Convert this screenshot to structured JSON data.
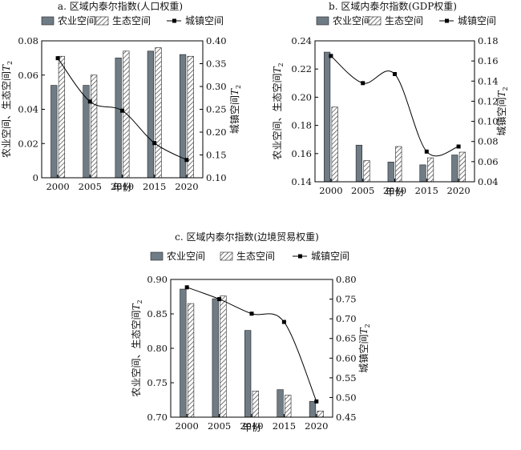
{
  "legend": {
    "agri": "农业空间",
    "eco": "生态空间",
    "urban": "城镇空间"
  },
  "colors": {
    "agri_fill": "#6f7c86",
    "eco_fill": "#ffffff",
    "hatch": "#333333",
    "line": "#000000"
  },
  "chart_data": [
    {
      "type": "bar",
      "title": "a. 区域内泰尔指数(人口权重)",
      "xlabel": "年份",
      "ylabel_left_prefix": "农业空间、生态空间",
      "ylabel_right_prefix": "城镇空间",
      "ylabel_symbol": "T",
      "ylabel_subscript": "2",
      "categories": [
        "2000",
        "2005",
        "2010",
        "2015",
        "2020"
      ],
      "ylim_left": [
        0,
        0.08
      ],
      "ylim_right": [
        0.1,
        0.4
      ],
      "yticks_left": [
        "0",
        "0.02",
        "0.04",
        "0.06",
        "0.08"
      ],
      "yticks_right": [
        "0.10",
        "0.15",
        "0.20",
        "0.25",
        "0.30",
        "0.35",
        "0.40"
      ],
      "series": [
        {
          "name": "农业空间",
          "type": "bar",
          "axis": "left",
          "values": [
            0.054,
            0.054,
            0.07,
            0.074,
            0.072
          ]
        },
        {
          "name": "生态空间",
          "type": "bar",
          "axis": "left",
          "values": [
            0.071,
            0.06,
            0.074,
            0.076,
            0.071
          ]
        },
        {
          "name": "城镇空间",
          "type": "line",
          "axis": "right",
          "values": [
            0.362,
            0.267,
            0.247,
            0.176,
            0.139
          ]
        }
      ]
    },
    {
      "type": "bar",
      "title": "b. 区域内泰尔指数(GDP权重)",
      "xlabel": "年份",
      "ylabel_left_prefix": "农业空间、生态空间",
      "ylabel_right_prefix": "城镇空间",
      "ylabel_symbol": "T",
      "ylabel_subscript": "2",
      "categories": [
        "2000",
        "2005",
        "2010",
        "2015",
        "2020"
      ],
      "ylim_left": [
        0.14,
        0.24
      ],
      "ylim_right": [
        0.04,
        0.18
      ],
      "yticks_left": [
        "0.14",
        "0.16",
        "0.18",
        "0.20",
        "0.22",
        "0.24"
      ],
      "yticks_right": [
        "0.04",
        "0.06",
        "0.08",
        "0.10",
        "0.12",
        "0.14",
        "0.16",
        "0.18"
      ],
      "series": [
        {
          "name": "农业空间",
          "type": "bar",
          "axis": "left",
          "values": [
            0.232,
            0.166,
            0.154,
            0.152,
            0.159
          ]
        },
        {
          "name": "生态空间",
          "type": "bar",
          "axis": "left",
          "values": [
            0.193,
            0.155,
            0.165,
            0.157,
            0.161
          ]
        },
        {
          "name": "城镇空间",
          "type": "line",
          "axis": "right",
          "values": [
            0.165,
            0.138,
            0.147,
            0.07,
            0.075
          ]
        }
      ]
    },
    {
      "type": "bar",
      "title": "c. 区域内泰尔指数(边境贸易权重)",
      "xlabel": "年份",
      "ylabel_left_prefix": "农业空间、生态空间",
      "ylabel_right_prefix": "城镇空间",
      "ylabel_symbol": "T",
      "ylabel_subscript": "2",
      "categories": [
        "2000",
        "2005",
        "2010",
        "2015",
        "2020"
      ],
      "ylim_left": [
        0.7,
        0.9
      ],
      "ylim_right": [
        0.45,
        0.8
      ],
      "yticks_left": [
        "0.70",
        "0.75",
        "0.80",
        "0.85",
        "0.90"
      ],
      "yticks_right": [
        "0.45",
        "0.50",
        "0.55",
        "0.60",
        "0.65",
        "0.70",
        "0.75",
        "0.80"
      ],
      "series": [
        {
          "name": "农业空间",
          "type": "bar",
          "axis": "left",
          "values": [
            0.886,
            0.872,
            0.826,
            0.74,
            0.723
          ]
        },
        {
          "name": "生态空间",
          "type": "bar",
          "axis": "left",
          "values": [
            0.865,
            0.876,
            0.738,
            0.732,
            0.709
          ]
        },
        {
          "name": "城镇空间",
          "type": "line",
          "axis": "right",
          "values": [
            0.78,
            0.75,
            0.713,
            0.692,
            0.49
          ]
        }
      ]
    }
  ]
}
